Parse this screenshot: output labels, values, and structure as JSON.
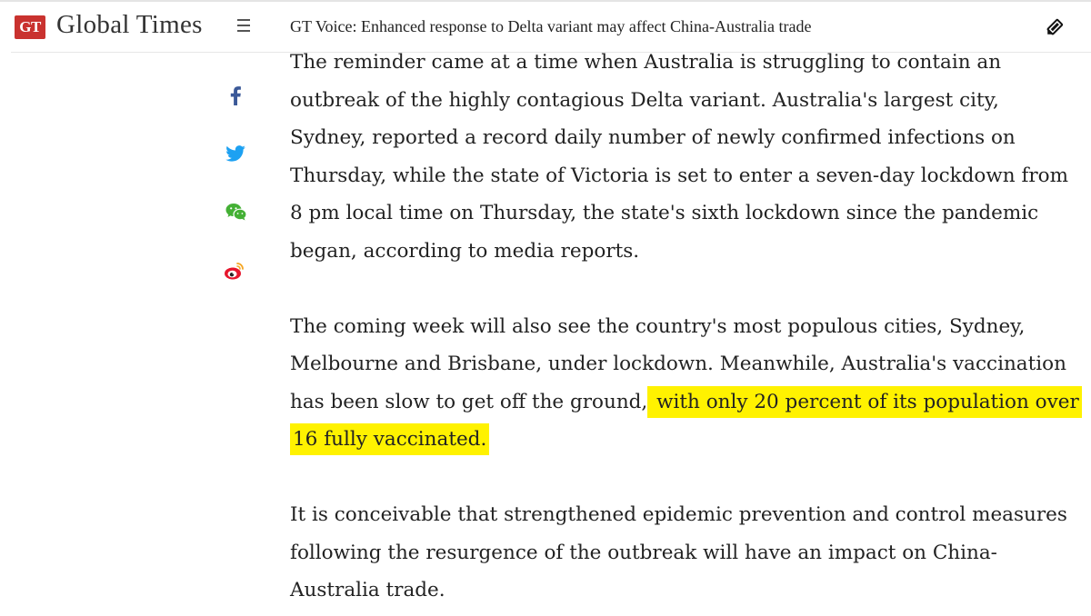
{
  "header": {
    "logo_badge": "GT",
    "logo_text": "Global Times",
    "headline": "GT Voice: Enhanced response to Delta variant may affect China-Australia trade",
    "menu_icon": "hamburger-menu-icon",
    "edit_icon": "pencil-icon"
  },
  "share": {
    "items": [
      {
        "icon": "facebook-icon",
        "color": "#3b5998"
      },
      {
        "icon": "twitter-icon",
        "color": "#1da1f2"
      },
      {
        "icon": "wechat-icon",
        "color": "#44b035"
      },
      {
        "icon": "weibo-icon",
        "color": "#e6162d"
      }
    ]
  },
  "article": {
    "paragraph1": {
      "lines": [
        "The reminder came at a time when Australia is struggling to contain an",
        "outbreak of the highly contagious Delta variant. Australia's largest city,",
        "Sydney, reported a record daily number of newly confirmed infections on",
        "Thursday, while the state of Victoria is set to enter a seven-day lockdown from",
        "8 pm local time on Thursday, the state's sixth lockdown since the pandemic",
        "began, according to media reports."
      ]
    },
    "paragraph2": {
      "line1": "The coming week will also see the country's most populous cities, Sydney,",
      "line2": "Melbourne and Brisbane, under lockdown. Meanwhile, Australia's vaccination",
      "line3_plain": "has been slow to get off the ground,",
      "line3_highlight": " with only 20 percent of its population over",
      "line4_highlight": "16 fully vaccinated."
    },
    "paragraph3": {
      "lines": [
        "It is conceivable that strengthened epidemic prevention and control measures",
        "following the resurgence of the outbreak will have an impact on China-",
        "Australia trade."
      ]
    },
    "highlight_color": "#fff200"
  }
}
